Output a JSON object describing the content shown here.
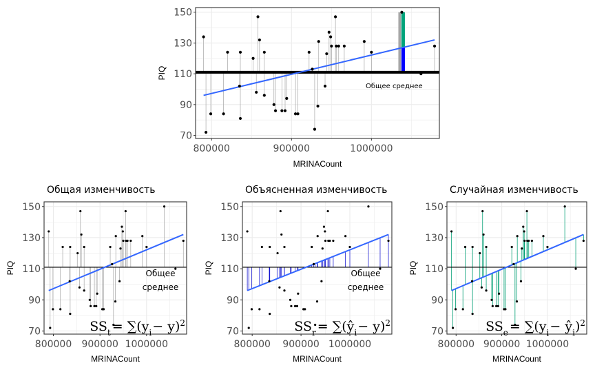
{
  "chart_data": [
    {
      "type": "scatter",
      "title": "",
      "xlabel": "MRINACount",
      "ylabel": "PIQ",
      "xlim": [
        780000,
        1085000
      ],
      "ylim": [
        68,
        153
      ],
      "x_ticks": [
        "800000",
        "900000",
        "1000000"
      ],
      "y_ticks": [
        "70",
        "90",
        "110",
        "130",
        "150"
      ],
      "mean_label": "Общее среднее",
      "mean": 111,
      "fit": {
        "x0": 790000,
        "y0": 96,
        "x1": 1079000,
        "y1": 132
      },
      "highlight": {
        "x": 1038000,
        "y": 150
      },
      "points": [
        {
          "x": 790000,
          "y": 134
        },
        {
          "x": 793000,
          "y": 72
        },
        {
          "x": 799000,
          "y": 84
        },
        {
          "x": 815000,
          "y": 84
        },
        {
          "x": 820000,
          "y": 124
        },
        {
          "x": 836000,
          "y": 124
        },
        {
          "x": 835000,
          "y": 102
        },
        {
          "x": 836000,
          "y": 81
        },
        {
          "x": 852000,
          "y": 120
        },
        {
          "x": 856000,
          "y": 98
        },
        {
          "x": 858000,
          "y": 147
        },
        {
          "x": 860000,
          "y": 132
        },
        {
          "x": 866000,
          "y": 124
        },
        {
          "x": 866000,
          "y": 96
        },
        {
          "x": 878000,
          "y": 90
        },
        {
          "x": 880000,
          "y": 86
        },
        {
          "x": 888000,
          "y": 86
        },
        {
          "x": 892000,
          "y": 86
        },
        {
          "x": 894000,
          "y": 94
        },
        {
          "x": 905000,
          "y": 84
        },
        {
          "x": 908000,
          "y": 84
        },
        {
          "x": 922000,
          "y": 124
        },
        {
          "x": 926000,
          "y": 113
        },
        {
          "x": 929000,
          "y": 74
        },
        {
          "x": 933000,
          "y": 89
        },
        {
          "x": 934000,
          "y": 131
        },
        {
          "x": 942000,
          "y": 102
        },
        {
          "x": 944000,
          "y": 123
        },
        {
          "x": 947000,
          "y": 137
        },
        {
          "x": 949000,
          "y": 134
        },
        {
          "x": 950000,
          "y": 128
        },
        {
          "x": 955000,
          "y": 147
        },
        {
          "x": 956000,
          "y": 128
        },
        {
          "x": 959000,
          "y": 128
        },
        {
          "x": 966000,
          "y": 128
        },
        {
          "x": 991000,
          "y": 131
        },
        {
          "x": 1000000,
          "y": 124
        },
        {
          "x": 1038000,
          "y": 150
        },
        {
          "x": 1062000,
          "y": 110
        },
        {
          "x": 1079000,
          "y": 128
        }
      ]
    },
    {
      "type": "scatter",
      "title": "Общая изменчивость",
      "xlabel": "MRINACount",
      "ylabel": "PIQ",
      "x_ticks": [
        "800000",
        "900000",
        "1000000"
      ],
      "y_ticks": [
        "70",
        "90",
        "110",
        "130",
        "150"
      ],
      "mean_label_line1": "Общее",
      "mean_label_line2": "среднее",
      "formula": {
        "lhs": "SS",
        "sub": "t",
        "rhs": "= ∑(y",
        "rsub": "i",
        "tail": "− y)",
        "sup": "2"
      }
    },
    {
      "type": "scatter",
      "title": "Объясненная изменчивость",
      "xlabel": "MRINACount",
      "ylabel": "PIQ",
      "x_ticks": [
        "800000",
        "900000",
        "1000000"
      ],
      "y_ticks": [
        "70",
        "90",
        "110",
        "130",
        "150"
      ],
      "mean_label_line1": "Общее",
      "mean_label_line2": "среднее",
      "formula": {
        "lhs": "SS",
        "sub": "r",
        "rhs": "= ∑(ŷ",
        "rsub": "i",
        "tail": "− y)",
        "sup": "2"
      }
    },
    {
      "type": "scatter",
      "title": "Случайная изменчивость",
      "xlabel": "MRINACount",
      "ylabel": "PIQ",
      "x_ticks": [
        "800000",
        "900000",
        "1000000"
      ],
      "y_ticks": [
        "70",
        "90",
        "110",
        "130",
        "150"
      ],
      "formula": {
        "lhs": "SS",
        "sub": "e",
        "rhs": "= ∑(y",
        "rsub": "i",
        "tail": "− ŷ",
        "tsub": "i",
        "tail2": ")",
        "sup": "2"
      }
    }
  ],
  "colors": {
    "fit": "#3366ff",
    "mean": "#000000",
    "total_seg": "#a6a6a6",
    "explained_seg": "#0000cc",
    "residual_seg": "#009e73",
    "explained_bar": "#0000ff",
    "residual_bar": "#00a37a",
    "grid": "#ebebeb",
    "point": "#000000"
  }
}
